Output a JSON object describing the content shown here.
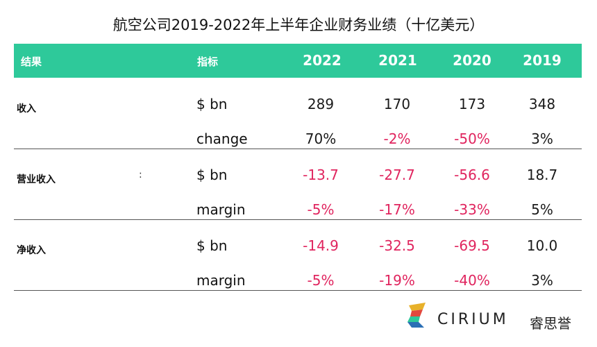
{
  "title": "航空公司2019-2022年上半年企业财务业绩（十亿美元）",
  "header": {
    "result": "结果",
    "metric": "指标",
    "years": [
      "2022",
      "2021",
      "2020",
      "2019"
    ]
  },
  "chart_data": {
    "type": "table",
    "columns": [
      "2022",
      "2021",
      "2020",
      "2019"
    ],
    "groups": [
      {
        "label": "收入",
        "rows": [
          {
            "metric": "$ bn",
            "values": [
              "289",
              "170",
              "173",
              "348"
            ]
          },
          {
            "metric": "change",
            "values": [
              "70%",
              "-2%",
              "-50%",
              "3%"
            ]
          }
        ]
      },
      {
        "label": "营业收入",
        "rows": [
          {
            "metric": "$ bn",
            "values": [
              "-13.7",
              "-27.7",
              "-56.6",
              "18.7"
            ]
          },
          {
            "metric": "margin",
            "values": [
              "-5%",
              "-17%",
              "-33%",
              "5%"
            ]
          }
        ]
      },
      {
        "label": "净收入",
        "rows": [
          {
            "metric": "$ bn",
            "values": [
              "-14.9",
              "-32.5",
              "-69.5",
              "10.0"
            ]
          },
          {
            "metric": "margin",
            "values": [
              "-5%",
              "-19%",
              "-40%",
              "3%"
            ]
          }
        ]
      }
    ]
  },
  "colon_mark": ":",
  "colors": {
    "header_bg": "#2ec99a",
    "negative": "#e0245e"
  },
  "brand": {
    "name": "CIRIUM",
    "cn": "睿思誉",
    "icon": "cirium-logo-icon"
  }
}
